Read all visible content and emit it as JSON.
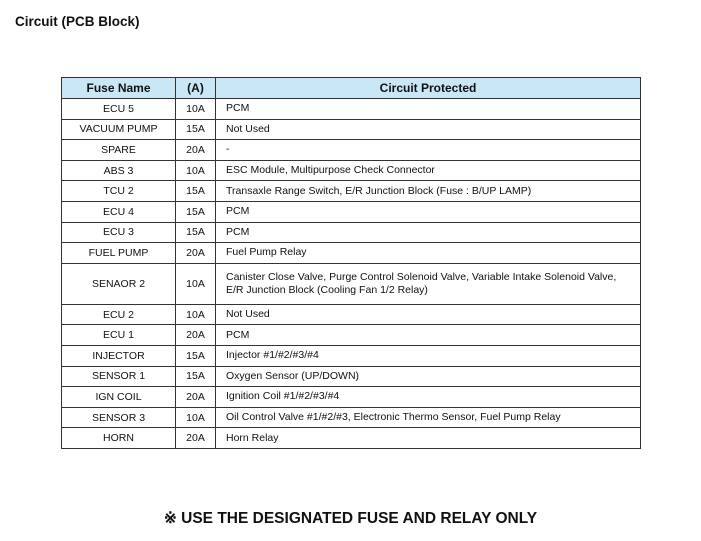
{
  "title": "Circuit (PCB Block)",
  "table": {
    "headers": [
      "Fuse Name",
      "(A)",
      "Circuit Protected"
    ],
    "rows": [
      {
        "name": "ECU 5",
        "amp": "10A",
        "circuit": "PCM"
      },
      {
        "name": "VACUUM PUMP",
        "amp": "15A",
        "circuit": "Not Used"
      },
      {
        "name": "SPARE",
        "amp": "20A",
        "circuit": "-"
      },
      {
        "name": "ABS 3",
        "amp": "10A",
        "circuit": "ESC Module, Multipurpose Check Connector"
      },
      {
        "name": "TCU 2",
        "amp": "15A",
        "circuit": "Transaxle Range Switch, E/R Junction Block (Fuse : B/UP LAMP)"
      },
      {
        "name": "ECU 4",
        "amp": "15A",
        "circuit": "PCM"
      },
      {
        "name": "ECU 3",
        "amp": "15A",
        "circuit": "PCM"
      },
      {
        "name": "FUEL PUMP",
        "amp": "20A",
        "circuit": "Fuel Pump Relay"
      },
      {
        "name": "SENAOR 2",
        "amp": "10A",
        "circuit": "Canister Close Valve, Purge Control Solenoid Valve, Variable Intake Solenoid Valve,",
        "circuit2": "E/R Junction Block (Cooling Fan 1/2 Relay)"
      },
      {
        "name": "ECU 2",
        "amp": "10A",
        "circuit": "Not Used"
      },
      {
        "name": "ECU 1",
        "amp": "20A",
        "circuit": "PCM"
      },
      {
        "name": "INJECTOR",
        "amp": "15A",
        "circuit": "Injector #1/#2/#3/#4"
      },
      {
        "name": "SENSOR 1",
        "amp": "15A",
        "circuit": "Oxygen Sensor (UP/DOWN)"
      },
      {
        "name": "IGN COIL",
        "amp": "20A",
        "circuit": "Ignition Coil #1/#2/#3/#4"
      },
      {
        "name": "SENSOR 3",
        "amp": "10A",
        "circuit": "Oil Control Valve #1/#2/#3, Electronic Thermo Sensor, Fuel Pump Relay"
      },
      {
        "name": "HORN",
        "amp": "20A",
        "circuit": "Horn Relay"
      }
    ]
  },
  "footer": "※ USE THE DESIGNATED FUSE AND RELAY ONLY",
  "colors": {
    "header_bg": "#c9e7f5"
  }
}
